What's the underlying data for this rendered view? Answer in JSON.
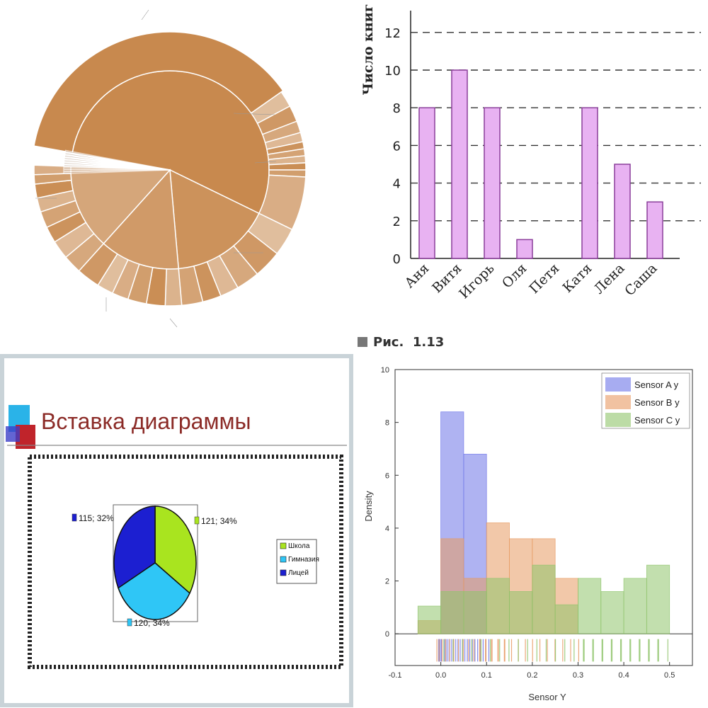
{
  "colors": {
    "sunburst": "#c8894e",
    "sunburst_line": "#ffffff",
    "bar_fill": "#e8b2f2",
    "bar_stroke": "#8a3e9a",
    "slide_title": "#8b2a26",
    "pie": [
      "#a9e41f",
      "#2fc6f6",
      "#1c1fd1"
    ],
    "hist": [
      "#6d74e8",
      "#e79a63",
      "#8fc46b"
    ]
  },
  "chart_data": [
    {
      "type": "sunburst",
      "title": "",
      "note": "labels unreadable at source resolution"
    },
    {
      "type": "bar",
      "categories": [
        "Аня",
        "Витя",
        "Игорь",
        "Оля",
        "Петя",
        "Катя",
        "Лена",
        "Саша"
      ],
      "values": [
        8,
        10,
        8,
        1,
        0,
        8,
        5,
        3
      ],
      "ylabel": "Число книг",
      "xlabel": "",
      "yticks": [
        0,
        2,
        4,
        6,
        8,
        10,
        12
      ],
      "ylim": [
        0,
        13
      ],
      "grid": "dashed horizontal"
    },
    {
      "type": "pie",
      "title": "Вставка диаграммы",
      "categories": [
        "Школа",
        "Гимназия",
        "Лицей"
      ],
      "values": [
        121,
        120,
        115
      ],
      "labels": [
        "121; 34%",
        "120; 34%",
        "115; 32%"
      ],
      "legend": "right"
    },
    {
      "type": "histogram",
      "xlabel": "Sensor Y",
      "ylabel": "Density",
      "xticks": [
        "-0.1",
        "0.0",
        "0.1",
        "0.2",
        "0.3",
        "0.4",
        "0.5"
      ],
      "yticks": [
        "0",
        "2",
        "4",
        "6",
        "8",
        "10"
      ],
      "xlim": [
        -0.1,
        0.55
      ],
      "ylim": [
        -1.2,
        10
      ],
      "legend": "top-right",
      "series": [
        {
          "name": "Sensor A y",
          "bins": [
            [
              0.0,
              0.05,
              8.4
            ],
            [
              0.05,
              0.1,
              6.8
            ]
          ]
        },
        {
          "name": "Sensor B y",
          "bins": [
            [
              -0.05,
              0.0,
              0.5
            ],
            [
              0.0,
              0.05,
              3.6
            ],
            [
              0.05,
              0.1,
              2.1
            ],
            [
              0.1,
              0.15,
              4.2
            ],
            [
              0.15,
              0.2,
              3.6
            ],
            [
              0.2,
              0.25,
              3.6
            ],
            [
              0.25,
              0.3,
              2.1
            ]
          ]
        },
        {
          "name": "Sensor C y",
          "bins": [
            [
              -0.05,
              0.0,
              1.05
            ],
            [
              0.0,
              0.05,
              1.6
            ],
            [
              0.05,
              0.1,
              1.6
            ],
            [
              0.1,
              0.15,
              2.1
            ],
            [
              0.15,
              0.2,
              1.6
            ],
            [
              0.2,
              0.25,
              2.6
            ],
            [
              0.25,
              0.3,
              1.1
            ],
            [
              0.3,
              0.35,
              2.1
            ],
            [
              0.35,
              0.4,
              1.6
            ],
            [
              0.4,
              0.45,
              2.1
            ],
            [
              0.45,
              0.5,
              2.6
            ]
          ]
        }
      ]
    }
  ],
  "figure_caption": "Рис.  1.13",
  "slide": {
    "title": "Вставка диаграммы"
  }
}
